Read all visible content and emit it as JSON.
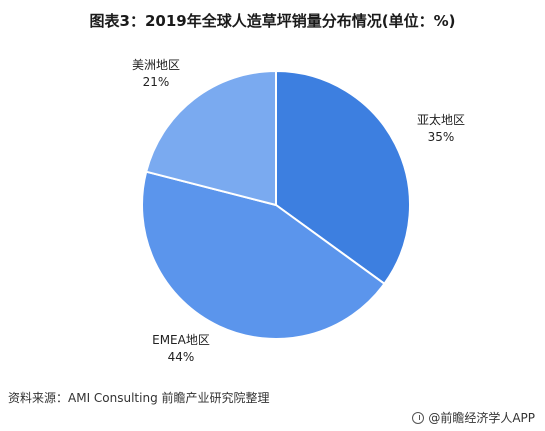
{
  "title": "图表3：2019年全球人造草坪销量分布情况(单位：%)",
  "source": "资料来源：AMI Consulting 前瞻产业研究院整理",
  "brand": "@前瞻经济学人APP",
  "chart_data": {
    "type": "pie",
    "title": "图表3：2019年全球人造草坪销量分布情况(单位：%)",
    "slices": [
      {
        "label": "亚太地区",
        "value": 35,
        "value_label": "35%",
        "color": "#3d7fe0"
      },
      {
        "label": "EMEA地区",
        "value": 44,
        "value_label": "44%",
        "color": "#5b95ec"
      },
      {
        "label": "美洲地区",
        "value": 21,
        "value_label": "21%",
        "color": "#7aaaf0"
      }
    ],
    "start": "12 o'clock, clockwise",
    "legend": "none"
  }
}
